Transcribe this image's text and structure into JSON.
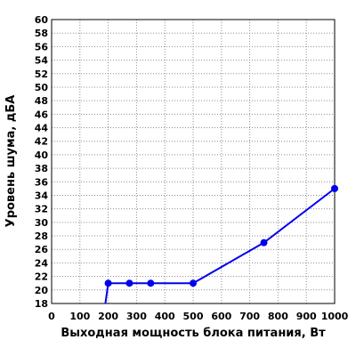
{
  "chart_data": {
    "type": "line",
    "xlabel": "Выходная мощность блока питания, Вт",
    "ylabel": "Уровень шума, дБА",
    "xlim": [
      0,
      1000
    ],
    "ylim": [
      18,
      60
    ],
    "x_ticks": [
      0,
      100,
      200,
      300,
      400,
      500,
      600,
      700,
      800,
      900,
      1000
    ],
    "y_ticks": [
      18,
      20,
      22,
      24,
      26,
      28,
      30,
      32,
      34,
      36,
      38,
      40,
      42,
      44,
      46,
      48,
      50,
      52,
      54,
      56,
      58,
      60
    ],
    "grid": true,
    "series": [
      {
        "color": "#0000ee",
        "points": [
          {
            "x": 200,
            "y": 21
          },
          {
            "x": 275,
            "y": 21
          },
          {
            "x": 350,
            "y": 21
          },
          {
            "x": 500,
            "y": 21
          },
          {
            "x": 750,
            "y": 27
          },
          {
            "x": 1000,
            "y": 35
          }
        ],
        "line_entry_from_below_at_x": 190
      }
    ]
  }
}
